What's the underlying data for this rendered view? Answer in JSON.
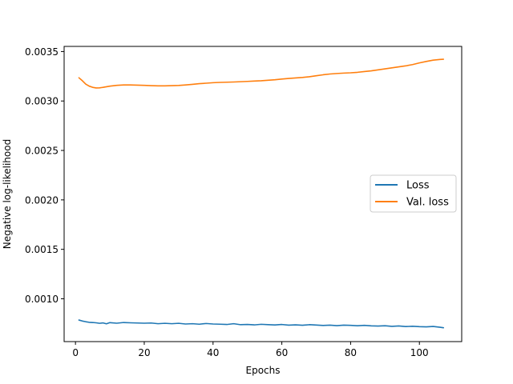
{
  "chart_data": {
    "type": "line",
    "title": "",
    "xlabel": "Epochs",
    "ylabel": "Negative log-likelihood",
    "xlim": [
      -3.3,
      112.3
    ],
    "ylim": [
      0.000567,
      0.003552
    ],
    "xticks": [
      0,
      20,
      40,
      60,
      80,
      100
    ],
    "yticks": [
      {
        "value": 0.001,
        "label": "0.0010"
      },
      {
        "value": 0.0015,
        "label": "0.0015"
      },
      {
        "value": 0.002,
        "label": "0.0020"
      },
      {
        "value": 0.0025,
        "label": "0.0025"
      },
      {
        "value": 0.003,
        "label": "0.0030"
      },
      {
        "value": 0.0035,
        "label": "0.0035"
      }
    ],
    "grid": false,
    "legend": {
      "placement": "center-right"
    },
    "series": [
      {
        "name": "Loss",
        "color": "#1f77b4",
        "points": [
          [
            1,
            0.000785
          ],
          [
            2,
            0.000775
          ],
          [
            3,
            0.000768
          ],
          [
            4,
            0.000762
          ],
          [
            5,
            0.00076
          ],
          [
            6,
            0.000757
          ],
          [
            7,
            0.000752
          ],
          [
            8,
            0.000756
          ],
          [
            9,
            0.000747
          ],
          [
            10,
            0.000759
          ],
          [
            12,
            0.000753
          ],
          [
            14,
            0.00076
          ],
          [
            16,
            0.000757
          ],
          [
            18,
            0.000755
          ],
          [
            20,
            0.000753
          ],
          [
            22,
            0.000755
          ],
          [
            24,
            0.000748
          ],
          [
            26,
            0.000752
          ],
          [
            28,
            0.000748
          ],
          [
            30,
            0.000752
          ],
          [
            32,
            0.000745
          ],
          [
            34,
            0.000748
          ],
          [
            36,
            0.000743
          ],
          [
            38,
            0.00075
          ],
          [
            40,
            0.000745
          ],
          [
            42,
            0.000743
          ],
          [
            44,
            0.00074
          ],
          [
            46,
            0.000748
          ],
          [
            48,
            0.000738
          ],
          [
            50,
            0.00074
          ],
          [
            52,
            0.000736
          ],
          [
            54,
            0.000742
          ],
          [
            56,
            0.000738
          ],
          [
            58,
            0.000735
          ],
          [
            60,
            0.00074
          ],
          [
            62,
            0.000733
          ],
          [
            64,
            0.000736
          ],
          [
            66,
            0.000732
          ],
          [
            68,
            0.000738
          ],
          [
            70,
            0.000734
          ],
          [
            72,
            0.00073
          ],
          [
            74,
            0.000733
          ],
          [
            76,
            0.000728
          ],
          [
            78,
            0.000733
          ],
          [
            80,
            0.000731
          ],
          [
            82,
            0.000727
          ],
          [
            84,
            0.000731
          ],
          [
            86,
            0.000726
          ],
          [
            88,
            0.000724
          ],
          [
            90,
            0.000727
          ],
          [
            92,
            0.000721
          ],
          [
            94,
            0.000725
          ],
          [
            96,
            0.000719
          ],
          [
            98,
            0.000722
          ],
          [
            100,
            0.000718
          ],
          [
            102,
            0.000716
          ],
          [
            104,
            0.00072
          ],
          [
            106,
            0.000712
          ],
          [
            107,
            0.000707
          ]
        ]
      },
      {
        "name": "Val. loss",
        "color": "#ff7f0e",
        "points": [
          [
            1,
            0.003235
          ],
          [
            2,
            0.003205
          ],
          [
            3,
            0.00317
          ],
          [
            4,
            0.00315
          ],
          [
            5,
            0.003138
          ],
          [
            6,
            0.003132
          ],
          [
            7,
            0.003133
          ],
          [
            8,
            0.003138
          ],
          [
            10,
            0.00315
          ],
          [
            12,
            0.003158
          ],
          [
            14,
            0.003162
          ],
          [
            16,
            0.003162
          ],
          [
            18,
            0.00316
          ],
          [
            20,
            0.003158
          ],
          [
            22,
            0.003155
          ],
          [
            24,
            0.003153
          ],
          [
            26,
            0.003153
          ],
          [
            28,
            0.003155
          ],
          [
            30,
            0.003157
          ],
          [
            32,
            0.003162
          ],
          [
            34,
            0.003168
          ],
          [
            36,
            0.003175
          ],
          [
            38,
            0.00318
          ],
          [
            40,
            0.003185
          ],
          [
            42,
            0.003188
          ],
          [
            44,
            0.00319
          ],
          [
            46,
            0.003192
          ],
          [
            48,
            0.003195
          ],
          [
            50,
            0.003198
          ],
          [
            52,
            0.003202
          ],
          [
            54,
            0.003205
          ],
          [
            56,
            0.00321
          ],
          [
            58,
            0.003215
          ],
          [
            60,
            0.003222
          ],
          [
            62,
            0.003228
          ],
          [
            64,
            0.003233
          ],
          [
            66,
            0.003238
          ],
          [
            68,
            0.003245
          ],
          [
            70,
            0.003255
          ],
          [
            72,
            0.003265
          ],
          [
            74,
            0.003273
          ],
          [
            76,
            0.003278
          ],
          [
            78,
            0.003282
          ],
          [
            80,
            0.003285
          ],
          [
            82,
            0.00329
          ],
          [
            84,
            0.003298
          ],
          [
            86,
            0.003305
          ],
          [
            88,
            0.003315
          ],
          [
            90,
            0.003325
          ],
          [
            92,
            0.003335
          ],
          [
            94,
            0.003345
          ],
          [
            96,
            0.003355
          ],
          [
            98,
            0.003368
          ],
          [
            100,
            0.003385
          ],
          [
            102,
            0.0034
          ],
          [
            104,
            0.003413
          ],
          [
            106,
            0.00342
          ],
          [
            107,
            0.003422
          ]
        ]
      }
    ]
  }
}
